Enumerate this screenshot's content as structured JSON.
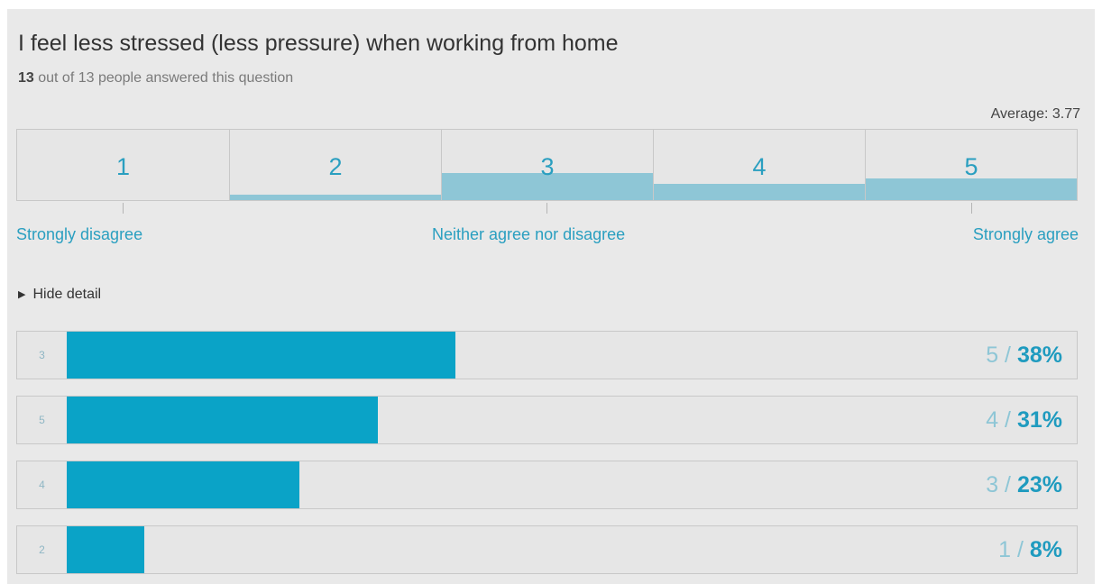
{
  "question": {
    "title": "I feel less stressed (less pressure) when working from home",
    "answered_count": "13",
    "answered_text": " out of 13 people answered this question",
    "average_label": "Average: 3.77"
  },
  "scale": {
    "anchors": [
      "Strongly disagree",
      "Neither agree nor disagree",
      "Strongly agree"
    ]
  },
  "detail_toggle": {
    "label": "Hide detail"
  },
  "colors": {
    "scale_fill": "#8ec6d6",
    "bar": "#0aa3c7",
    "accent_text": "#2a9fc0",
    "background": "#e9e9e9"
  },
  "chart_data": [
    {
      "type": "bar",
      "orientation": "vertical",
      "categories": [
        "1",
        "2",
        "3",
        "4",
        "5"
      ],
      "values": [
        0,
        1,
        5,
        3,
        4
      ],
      "ylim": [
        0,
        13
      ]
    },
    {
      "type": "bar",
      "orientation": "horizontal",
      "categories": [
        "3",
        "5",
        "4",
        "2"
      ],
      "values": [
        5,
        4,
        3,
        1
      ],
      "percent": [
        "38%",
        "31%",
        "23%",
        "8%"
      ],
      "xlim": [
        0,
        13
      ]
    }
  ]
}
